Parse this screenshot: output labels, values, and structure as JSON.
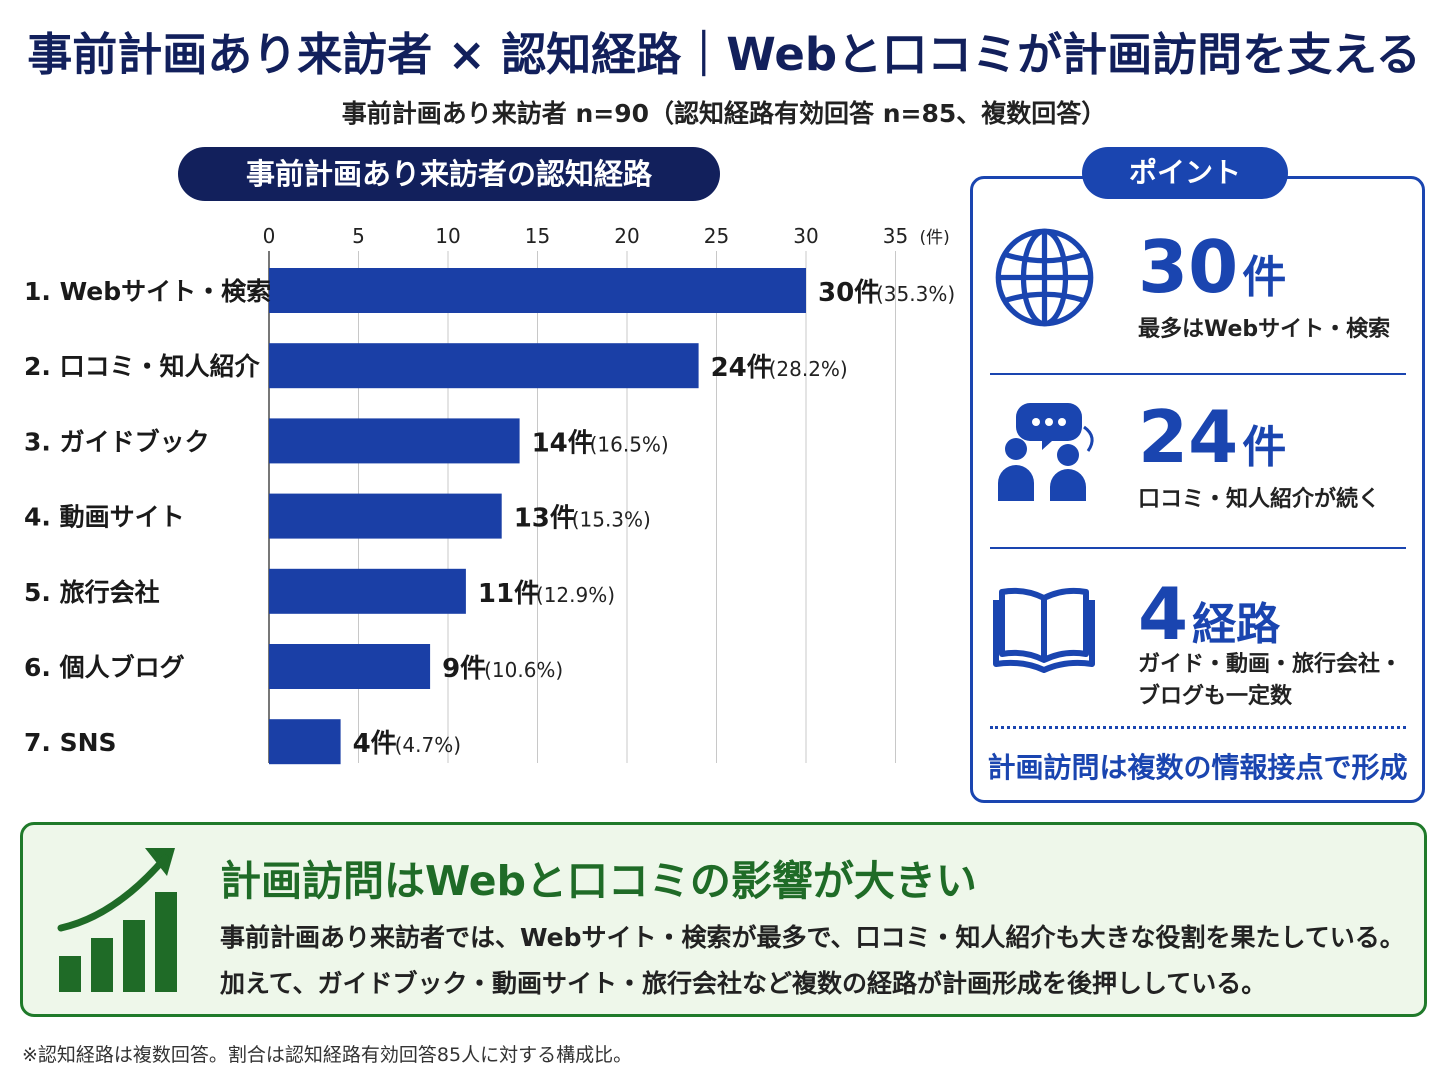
{
  "title": "事前計画あり来訪者 × 認知経路｜Webと口コミが計画訪問を支える",
  "subtitle": "事前計画あり来訪者 n=90（認知経路有効回答 n=85、複数回答）",
  "chart_title": "事前計画あり来訪者の認知経路",
  "chart_data": {
    "type": "bar",
    "orientation": "horizontal",
    "categories": [
      "1. Webサイト・検索",
      "2. 口コミ・知人紹介",
      "3. ガイドブック",
      "4. 動画サイト",
      "5. 旅行会社",
      "6. 個人ブログ",
      "7. SNS"
    ],
    "values": [
      30,
      24,
      14,
      13,
      11,
      9,
      4
    ],
    "value_labels": [
      "30件",
      "24件",
      "14件",
      "13件",
      "11件",
      "9件",
      "4件"
    ],
    "percent_labels": [
      "(35.3%)",
      "(28.2%)",
      "(16.5%)",
      "(15.3%)",
      "(12.9%)",
      "(10.6%)",
      "(4.7%)"
    ],
    "xlim": [
      0,
      37
    ],
    "x_ticks": [
      0,
      5,
      10,
      15,
      20,
      25,
      30,
      35
    ],
    "x_unit": "(件)",
    "grid": true,
    "bar_color": "#1a3fa6"
  },
  "points": {
    "header": "ポイント",
    "items": [
      {
        "icon": "globe-icon",
        "big": "30",
        "unit": "件",
        "text": [
          "最多はWebサイト・検索"
        ]
      },
      {
        "icon": "people-chat-icon",
        "big": "24",
        "unit": "件",
        "text": [
          "口コミ・知人紹介が続く"
        ]
      },
      {
        "icon": "book-icon",
        "big": "4",
        "unit": "経路",
        "text": [
          "ガイド・動画・旅行会社・",
          "ブログも一定数"
        ]
      }
    ],
    "summary": "計画訪問は複数の情報接点で形成"
  },
  "conclusion": {
    "icon": "growth-chart-icon",
    "heading": "計画訪問はWebと口コミの影響が大きい",
    "lines": [
      "事前計画あり来訪者では、Webサイト・検索が最多で、口コミ・知人紹介も大きな役割を果たしている。",
      "加えて、ガイドブック・動画サイト・旅行会社など複数の経路が計画形成を後押ししている。"
    ]
  },
  "footnote": "※認知経路は複数回答。割合は認知経路有効回答85人に対する構成比。",
  "colors": {
    "navy": "#12205c",
    "blue": "#1a45b0",
    "bar": "#1a3fa6",
    "green": "#1f6b27",
    "green_bg": "#eef7ea"
  }
}
